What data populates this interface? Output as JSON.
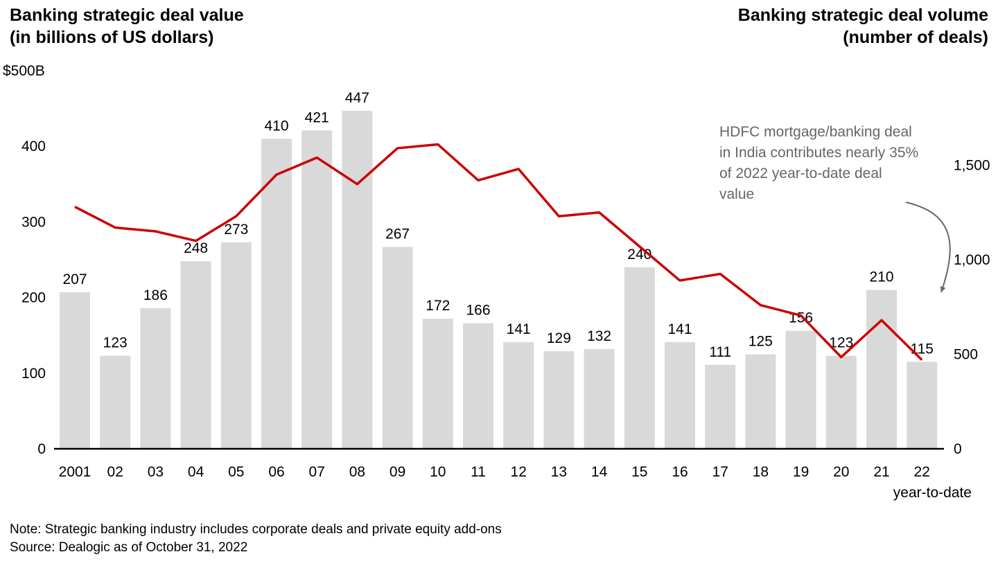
{
  "header": {
    "left_title_line1": "Banking strategic deal value",
    "left_title_line2": "(in billions of US dollars)",
    "right_title_line1": "Banking strategic deal volume",
    "right_title_line2": "(number of deals)"
  },
  "chart_data": {
    "type": "bar+line",
    "categories": [
      "2001",
      "02",
      "03",
      "04",
      "05",
      "06",
      "07",
      "08",
      "09",
      "10",
      "11",
      "12",
      "13",
      "14",
      "15",
      "16",
      "17",
      "18",
      "19",
      "20",
      "21",
      "22"
    ],
    "x_axis_suffix_label": "year-to-date",
    "series": [
      {
        "name": "Banking strategic deal value ($B)",
        "type": "bar",
        "axis": "left",
        "values": [
          207,
          123,
          186,
          248,
          273,
          410,
          421,
          447,
          267,
          172,
          166,
          141,
          129,
          132,
          240,
          141,
          111,
          125,
          156,
          123,
          210,
          115
        ]
      },
      {
        "name": "Banking strategic deal volume (number of deals)",
        "type": "line",
        "axis": "right",
        "values": [
          1280,
          1170,
          1150,
          1100,
          1230,
          1450,
          1540,
          1400,
          1590,
          1610,
          1420,
          1480,
          1230,
          1250,
          1070,
          890,
          925,
          760,
          705,
          485,
          680,
          470
        ]
      }
    ],
    "left_axis": {
      "top_label": "$500B",
      "ticks": [
        0,
        100,
        200,
        300,
        400
      ],
      "max": 500
    },
    "right_axis": {
      "ticks": [
        0,
        500,
        1000,
        1500
      ],
      "max": 2000
    },
    "bar_color": "#d9d9d9",
    "line_color": "#cc0000",
    "grid": false,
    "legend_position": "none"
  },
  "annotation": {
    "text": "HDFC mortgage/banking deal in India contributes nearly 35% of 2022 year-to-date deal value",
    "color": "#63666a"
  },
  "footer": {
    "note": "Note: Strategic banking industry includes corporate deals and private equity add-ons",
    "source": "Source: Dealogic as of October 31, 2022"
  }
}
